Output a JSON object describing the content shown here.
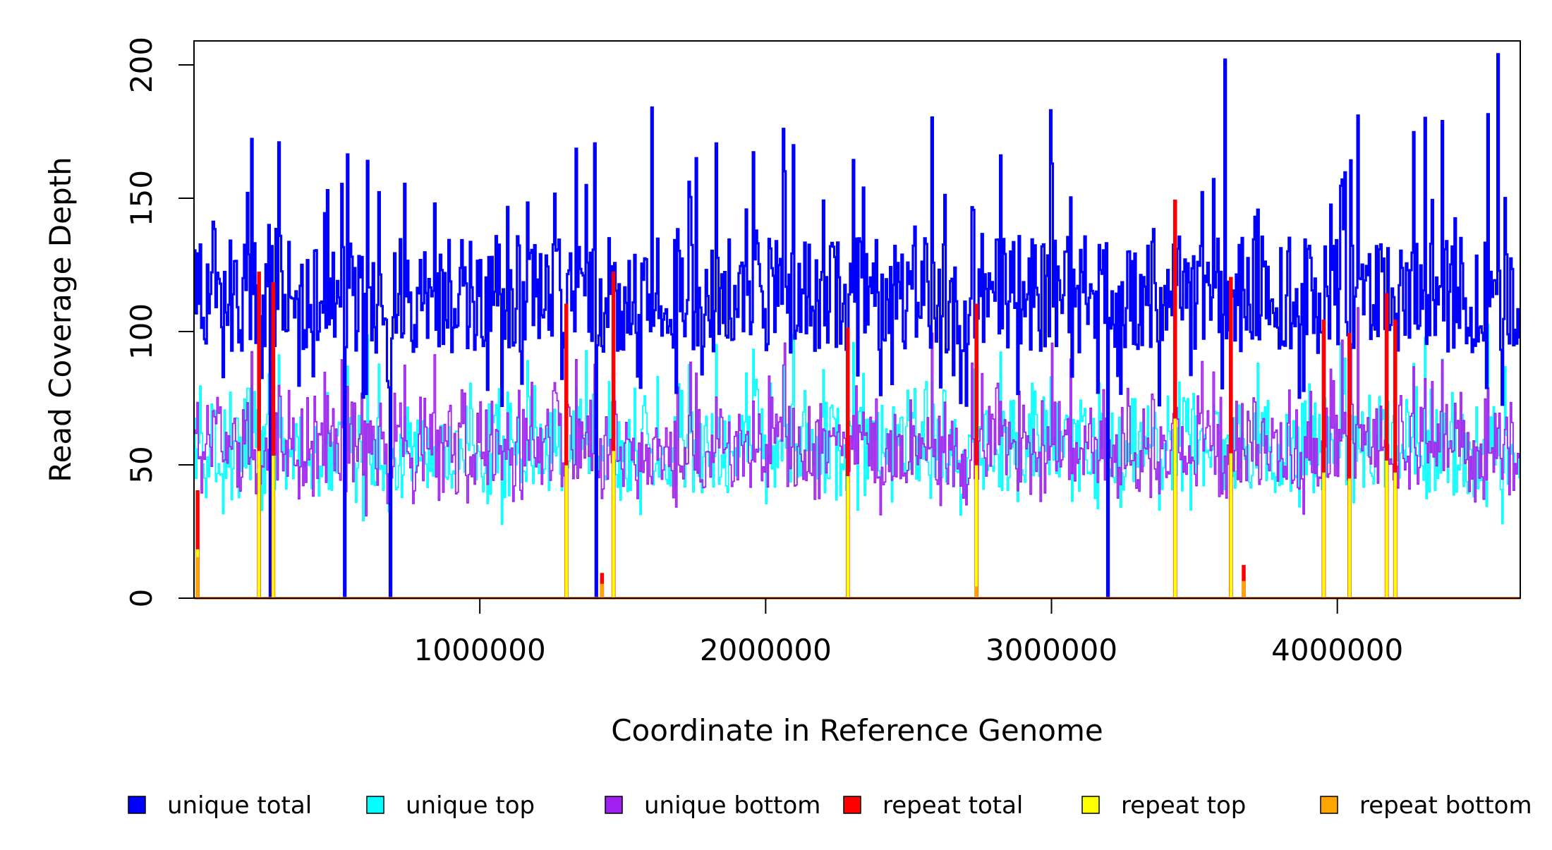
{
  "chart_data": {
    "type": "line",
    "xlabel": "Coordinate in Reference Genome",
    "ylabel": "Read Coverage Depth",
    "xlim": [
      0,
      4640000
    ],
    "ylim": [
      0,
      209
    ],
    "x_ticks": [
      1000000,
      2000000,
      3000000,
      4000000
    ],
    "x_tick_labels": [
      "1000000",
      "2000000",
      "3000000",
      "4000000"
    ],
    "y_ticks": [
      0,
      50,
      100,
      150,
      200
    ],
    "y_tick_labels": [
      "0",
      "50",
      "100",
      "150",
      "200"
    ],
    "grid": false,
    "legend_position": "bottom",
    "bin_size": 5000,
    "series": [
      {
        "name": "unique total",
        "color": "#0000FF",
        "style": "step",
        "baseline_mean": 112,
        "baseline_range": [
          75,
          205
        ]
      },
      {
        "name": "unique top",
        "color": "#00FFFF",
        "style": "step",
        "baseline_mean": 56,
        "baseline_range": [
          20,
          100
        ]
      },
      {
        "name": "unique bottom",
        "color": "#A020F0",
        "style": "step",
        "baseline_mean": 56,
        "baseline_range": [
          30,
          90
        ]
      },
      {
        "name": "repeat total",
        "color": "#FF0000",
        "style": "step",
        "baseline_mean": 0
      },
      {
        "name": "repeat top",
        "color": "#FFFF00",
        "style": "step",
        "baseline_mean": 0
      },
      {
        "name": "repeat bottom",
        "color": "#FFA500",
        "style": "step",
        "baseline_mean": 0
      }
    ],
    "coverage_gaps": [
      225000,
      265000,
      525000,
      685000,
      1300000,
      1405000,
      1465000,
      2285000,
      2735000,
      3195000,
      3430000,
      3625000,
      3950000,
      4040000,
      4170000,
      4200000
    ],
    "unique_total_peaks": [
      {
        "x": 1600000,
        "y": 184
      },
      {
        "x": 3605000,
        "y": 202
      },
      {
        "x": 4560000,
        "y": 204
      },
      {
        "x": 2995000,
        "y": 183
      },
      {
        "x": 2060000,
        "y": 176
      }
    ],
    "repeat_total_spikes": [
      {
        "x": 10000,
        "y": 40
      },
      {
        "x": 225000,
        "y": 122
      },
      {
        "x": 275000,
        "y": 118
      },
      {
        "x": 1300000,
        "y": 110
      },
      {
        "x": 1425000,
        "y": 9
      },
      {
        "x": 1465000,
        "y": 122
      },
      {
        "x": 2285000,
        "y": 101
      },
      {
        "x": 2735000,
        "y": 110
      },
      {
        "x": 3430000,
        "y": 149
      },
      {
        "x": 3625000,
        "y": 120
      },
      {
        "x": 3670000,
        "y": 12
      },
      {
        "x": 3950000,
        "y": 104
      },
      {
        "x": 4040000,
        "y": 99
      },
      {
        "x": 4170000,
        "y": 114
      },
      {
        "x": 4200000,
        "y": 104
      }
    ],
    "repeat_bottom_spikes": [
      {
        "x": 10000,
        "y": 15
      },
      {
        "x": 1425000,
        "y": 5
      },
      {
        "x": 2735000,
        "y": 4
      },
      {
        "x": 3670000,
        "y": 6
      }
    ]
  }
}
